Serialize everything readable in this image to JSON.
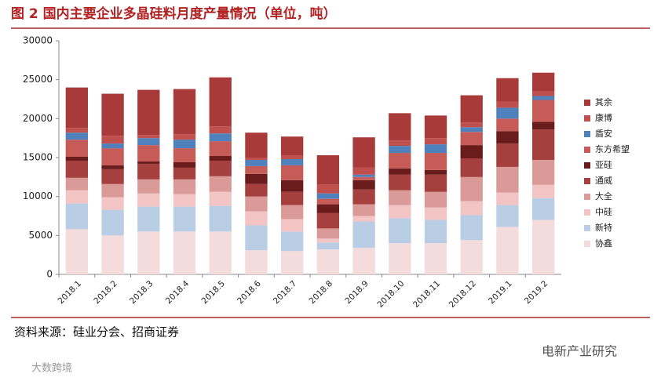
{
  "chart_data": {
    "type": "stacked_bar",
    "title": "图 2 国内主要企业多晶硅料月度产量情况（单位，吨）",
    "source": "资料来源：硅业分会、招商证券",
    "watermarks": [
      "电新产业研究",
      "大数跨境"
    ],
    "categories": [
      "2018.1",
      "2018.2",
      "2018.3",
      "2018.4",
      "2018.5",
      "2018.6",
      "2018.7",
      "2018.8",
      "2018.9",
      "2018.10",
      "2018.11",
      "2018.12",
      "2019.1",
      "2019.2"
    ],
    "ylim": [
      0,
      30000
    ],
    "yticks": [
      0,
      5000,
      10000,
      15000,
      20000,
      25000,
      30000
    ],
    "series": [
      {
        "name": "协鑫",
        "color": "#f4dcdc",
        "values": [
          5800,
          5000,
          5500,
          5500,
          5500,
          3100,
          3000,
          3200,
          3400,
          4000,
          4000,
          4400,
          6100,
          7000
        ]
      },
      {
        "name": "新特",
        "color": "#b9cde5",
        "values": [
          3300,
          3300,
          3200,
          3200,
          3300,
          3200,
          2500,
          900,
          3400,
          3200,
          3000,
          3200,
          2800,
          2800
        ]
      },
      {
        "name": "中硅",
        "color": "#f2c4c4",
        "values": [
          1700,
          1600,
          1700,
          1600,
          1800,
          1800,
          1600,
          500,
          700,
          1700,
          1600,
          1800,
          1600,
          1700
        ]
      },
      {
        "name": "大全",
        "color": "#d99a98",
        "values": [
          1600,
          1700,
          1800,
          1900,
          2000,
          1900,
          1800,
          1300,
          1500,
          1900,
          2000,
          3100,
          3300,
          3200
        ]
      },
      {
        "name": "通威",
        "color": "#a5403e",
        "values": [
          2200,
          1900,
          2000,
          1500,
          2000,
          1600,
          1700,
          2000,
          1900,
          2000,
          2200,
          2400,
          3000,
          3900
        ]
      },
      {
        "name": "亚硅",
        "color": "#6a1b1b",
        "values": [
          500,
          500,
          300,
          700,
          600,
          1300,
          1500,
          1100,
          1200,
          800,
          600,
          1700,
          1600,
          1000
        ]
      },
      {
        "name": "东方希望",
        "color": "#c65b58",
        "values": [
          2200,
          2200,
          2100,
          1800,
          1900,
          1000,
          1900,
          700,
          400,
          2000,
          2200,
          1700,
          1600,
          2800
        ]
      },
      {
        "name": "盾安",
        "color": "#4f81bd",
        "values": [
          900,
          600,
          900,
          1100,
          1000,
          800,
          800,
          700,
          300,
          900,
          1100,
          600,
          1400,
          500
        ]
      },
      {
        "name": "康博",
        "color": "#c0504d",
        "values": [
          600,
          1000,
          400,
          700,
          900,
          300,
          500,
          1100,
          900,
          700,
          800,
          600,
          800,
          600
        ]
      },
      {
        "name": "其余",
        "color": "#a93a3a",
        "values": [
          5200,
          5400,
          5800,
          5800,
          6300,
          3200,
          2400,
          3800,
          3900,
          3500,
          2900,
          3500,
          3000,
          2400
        ]
      }
    ]
  }
}
